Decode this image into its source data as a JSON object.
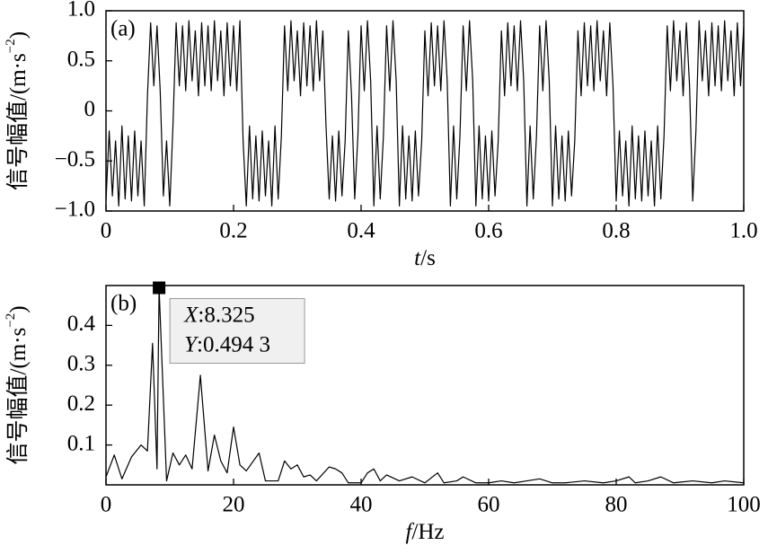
{
  "chart_data": [
    {
      "type": "line",
      "panel_label": "(a)",
      "color": "#000000",
      "ylabel": [
        "信号幅值/(m·s",
        "−2",
        ")"
      ],
      "xlabel": [
        "t",
        "/s"
      ],
      "xlim": [
        0,
        1
      ],
      "ylim": [
        -1,
        1
      ],
      "xticks": [
        0,
        0.2,
        0.4,
        0.6,
        0.8,
        {
          "value": 1,
          "label": "1.0"
        }
      ],
      "yticks": [
        {
          "value": -1,
          "label": "−1.0"
        },
        {
          "value": -0.5,
          "label": "−0.5"
        },
        0,
        0.5,
        {
          "value": 1,
          "label": "1.0"
        }
      ],
      "x": [
        0,
        0.005,
        0.01,
        0.015,
        0.02,
        0.025,
        0.03,
        0.035,
        0.04,
        0.045,
        0.05,
        0.055,
        0.06,
        0.065,
        0.07,
        0.075,
        0.08,
        0.085,
        0.09,
        0.095,
        0.1,
        0.105,
        0.11,
        0.115,
        0.12,
        0.125,
        0.13,
        0.135,
        0.14,
        0.145,
        0.15,
        0.155,
        0.16,
        0.165,
        0.17,
        0.175,
        0.18,
        0.185,
        0.19,
        0.195,
        0.2,
        0.205,
        0.21,
        0.215,
        0.22,
        0.225,
        0.23,
        0.235,
        0.24,
        0.245,
        0.25,
        0.255,
        0.26,
        0.265,
        0.27,
        0.275,
        0.28,
        0.285,
        0.29,
        0.295,
        0.3,
        0.305,
        0.31,
        0.315,
        0.32,
        0.325,
        0.33,
        0.335,
        0.34,
        0.345,
        0.35,
        0.355,
        0.36,
        0.365,
        0.37,
        0.375,
        0.38,
        0.385,
        0.39,
        0.395,
        0.4,
        0.405,
        0.41,
        0.415,
        0.42,
        0.425,
        0.43,
        0.435,
        0.44,
        0.445,
        0.45,
        0.455,
        0.46,
        0.465,
        0.47,
        0.475,
        0.48,
        0.485,
        0.49,
        0.495,
        0.5,
        0.505,
        0.51,
        0.515,
        0.52,
        0.525,
        0.53,
        0.535,
        0.54,
        0.545,
        0.55,
        0.555,
        0.56,
        0.565,
        0.57,
        0.575,
        0.58,
        0.585,
        0.59,
        0.595,
        0.6,
        0.605,
        0.61,
        0.615,
        0.62,
        0.625,
        0.63,
        0.635,
        0.64,
        0.645,
        0.65,
        0.655,
        0.66,
        0.665,
        0.67,
        0.675,
        0.68,
        0.685,
        0.69,
        0.695,
        0.7,
        0.705,
        0.71,
        0.715,
        0.72,
        0.725,
        0.73,
        0.735,
        0.74,
        0.745,
        0.75,
        0.755,
        0.76,
        0.765,
        0.77,
        0.775,
        0.78,
        0.785,
        0.79,
        0.795,
        0.8,
        0.805,
        0.81,
        0.815,
        0.82,
        0.825,
        0.83,
        0.835,
        0.84,
        0.845,
        0.85,
        0.855,
        0.86,
        0.865,
        0.87,
        0.875,
        0.88,
        0.885,
        0.89,
        0.895,
        0.9,
        0.905,
        0.91,
        0.915,
        0.92,
        0.925,
        0.93,
        0.935,
        0.94,
        0.945,
        0.95,
        0.955,
        0.96,
        0.965,
        0.97,
        0.975,
        0.98,
        0.985,
        0.99,
        0.995,
        1
      ],
      "values": [
        -0.9,
        -0.2,
        -0.85,
        -0.3,
        -0.95,
        -0.15,
        -0.88,
        -0.25,
        -0.9,
        -0.2,
        -0.85,
        -0.3,
        -0.95,
        0.15,
        0.88,
        0.25,
        0.85,
        0.2,
        -0.85,
        -0.3,
        -0.95,
        -0.15,
        0.88,
        0.25,
        0.85,
        0.2,
        0.9,
        0.3,
        0.8,
        0.15,
        0.88,
        0.25,
        0.85,
        0.2,
        0.9,
        0.3,
        0.8,
        0.15,
        0.88,
        0.25,
        0.85,
        0.2,
        0.9,
        -0.3,
        -0.95,
        -0.15,
        -0.88,
        -0.25,
        -0.9,
        -0.2,
        -0.85,
        -0.3,
        -0.95,
        -0.15,
        -0.88,
        -0.25,
        0.85,
        0.2,
        0.9,
        0.3,
        0.8,
        0.15,
        0.88,
        0.25,
        0.85,
        0.2,
        0.9,
        0.3,
        0.8,
        -0.15,
        -0.88,
        -0.25,
        -0.9,
        -0.2,
        -0.85,
        -0.3,
        0.8,
        0.15,
        -0.88,
        -0.25,
        0.85,
        0.2,
        0.9,
        0.3,
        -0.95,
        -0.15,
        -0.88,
        -0.25,
        0.85,
        0.2,
        0.9,
        0.3,
        -0.95,
        -0.15,
        -0.88,
        -0.25,
        -0.9,
        -0.2,
        -0.85,
        -0.3,
        0.8,
        0.15,
        0.88,
        0.25,
        0.85,
        0.2,
        0.9,
        0.3,
        -0.95,
        -0.15,
        -0.88,
        -0.25,
        0.85,
        0.2,
        0.9,
        0.3,
        -0.95,
        -0.15,
        -0.88,
        -0.25,
        -0.9,
        -0.2,
        -0.85,
        -0.3,
        0.8,
        0.15,
        0.88,
        0.25,
        0.85,
        0.2,
        0.9,
        0.3,
        -0.95,
        -0.15,
        -0.88,
        -0.25,
        0.85,
        0.2,
        0.9,
        0.3,
        -0.95,
        -0.15,
        -0.88,
        -0.25,
        -0.9,
        -0.2,
        -0.85,
        -0.3,
        0.8,
        0.15,
        0.88,
        0.25,
        0.85,
        0.2,
        0.9,
        0.3,
        0.8,
        0.15,
        0.88,
        0.25,
        -0.9,
        -0.2,
        -0.85,
        -0.3,
        -0.95,
        -0.15,
        -0.88,
        -0.25,
        -0.9,
        -0.2,
        -0.85,
        -0.3,
        -0.95,
        -0.15,
        -0.88,
        -0.25,
        0.85,
        0.2,
        0.9,
        0.3,
        0.8,
        0.15,
        0.88,
        0.25,
        -0.9,
        -0.2,
        0.9,
        0.3,
        0.8,
        0.15,
        0.88,
        0.25,
        0.85,
        0.2,
        0.9,
        0.3,
        0.8,
        0.15,
        0.88,
        0.25,
        0.85
      ]
    },
    {
      "type": "line",
      "panel_label": "(b)",
      "color": "#000000",
      "ylabel": [
        "信号幅值/(m·s",
        "−2",
        ")"
      ],
      "xlabel": [
        "f",
        "/Hz"
      ],
      "xlim": [
        0,
        100
      ],
      "ylim": [
        0,
        0.5
      ],
      "xticks": [
        0,
        20,
        40,
        60,
        80,
        100
      ],
      "yticks": [
        0.1,
        0.2,
        0.3,
        0.4
      ],
      "x": [
        0,
        1.3,
        2.5,
        4,
        5.5,
        6.5,
        7.3,
        8,
        8.325,
        9.5,
        10.5,
        11.5,
        12.5,
        13.5,
        14.8,
        16,
        17,
        18,
        19,
        20,
        21,
        22,
        24,
        25,
        27,
        28,
        29,
        30,
        31,
        32,
        33,
        35,
        36,
        37,
        38,
        40,
        41,
        42,
        43,
        44,
        46,
        48,
        50,
        52,
        53,
        55,
        56,
        58,
        60,
        62,
        64,
        66,
        68,
        70,
        72,
        75,
        78,
        80,
        82,
        83,
        85,
        87,
        89,
        92,
        95,
        97,
        100
      ],
      "values": [
        0.02,
        0.075,
        0.015,
        0.07,
        0.1,
        0.085,
        0.355,
        0.04,
        0.4943,
        0.01,
        0.08,
        0.05,
        0.075,
        0.04,
        0.275,
        0.035,
        0.125,
        0.06,
        0.03,
        0.145,
        0.05,
        0.035,
        0.08,
        0.01,
        0.01,
        0.06,
        0.04,
        0.05,
        0.02,
        0.025,
        0.01,
        0.045,
        0.04,
        0.03,
        0.005,
        0.005,
        0.03,
        0.04,
        0.01,
        0.025,
        0.01,
        0.02,
        0.005,
        0.03,
        0.005,
        0.01,
        0.02,
        0.005,
        0.005,
        0.01,
        0.005,
        0.01,
        0.015,
        0.005,
        0.005,
        0.01,
        0.005,
        0.01,
        0.02,
        0.005,
        0.01,
        0.02,
        0.005,
        0.01,
        0.005,
        0.01,
        0.005
      ],
      "annotation": {
        "x": 8.325,
        "y": 0.4943,
        "names": [
          "X",
          "Y"
        ],
        "texts": [
          ":8.325",
          ":0.494 3"
        ]
      }
    }
  ]
}
